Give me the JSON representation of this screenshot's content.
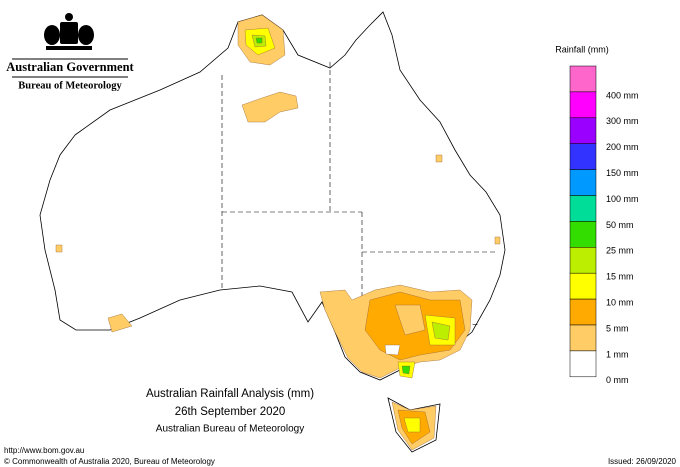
{
  "header": {
    "government": "Australian Government",
    "agency": "Bureau of Meteorology"
  },
  "legend": {
    "title": "Rainfall (mm)",
    "items": [
      {
        "label": "400 mm",
        "color": "#ff66cc"
      },
      {
        "label": "300 mm",
        "color": "#ff00ff"
      },
      {
        "label": "200 mm",
        "color": "#9900ff"
      },
      {
        "label": "150 mm",
        "color": "#3333ff"
      },
      {
        "label": "100 mm",
        "color": "#0099ff"
      },
      {
        "label": "50 mm",
        "color": "#00dd99"
      },
      {
        "label": "25 mm",
        "color": "#33dd00"
      },
      {
        "label": "15 mm",
        "color": "#bbee00"
      },
      {
        "label": "10 mm",
        "color": "#ffff00"
      },
      {
        "label": "5 mm",
        "color": "#ffaa00"
      },
      {
        "label": "1 mm",
        "color": "#ffcc66"
      },
      {
        "label": "0 mm",
        "color": "#ffffff"
      }
    ]
  },
  "map_title": {
    "line1": "Australian Rainfall Analysis (mm)",
    "line2": "26th September 2020",
    "line3": "Australian Bureau of Meteorology"
  },
  "footer": {
    "url": "http://www.bom.gov.au",
    "copyright": "© Commonwealth of Australia 2020, Bureau of Meteorology",
    "issued": "Issued: 26/09/2020"
  }
}
